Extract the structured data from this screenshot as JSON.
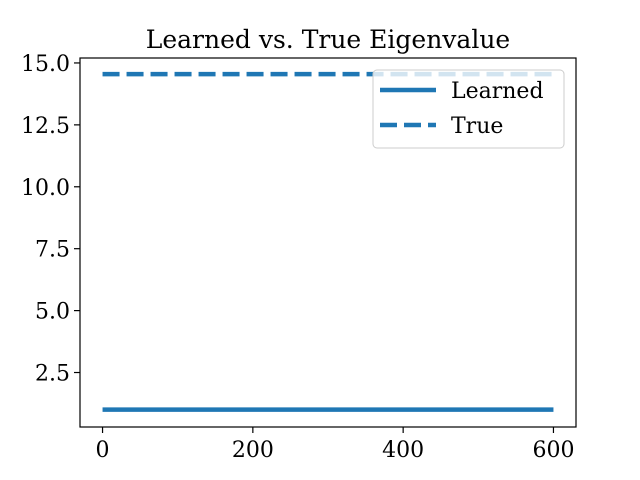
{
  "chart_data": {
    "type": "line",
    "title": "Learned vs. True Eigenvalue",
    "xlabel": "",
    "ylabel": "",
    "xlim": [
      -30,
      630
    ],
    "ylim": [
      0.3,
      15.2
    ],
    "x_ticks": [
      0,
      200,
      400,
      600
    ],
    "y_ticks": [
      2.5,
      5.0,
      7.5,
      10.0,
      12.5,
      15.0
    ],
    "x_tick_labels": [
      "0",
      "200",
      "400",
      "600"
    ],
    "y_tick_labels": [
      "2.5",
      "5.0",
      "7.5",
      "10.0",
      "12.5",
      "15.0"
    ],
    "grid": false,
    "legend_position": "upper right",
    "series": [
      {
        "name": "Learned",
        "x": [
          0,
          600
        ],
        "y": [
          1.0,
          1.0
        ],
        "style": "solid",
        "color": "#1f77b4"
      },
      {
        "name": "True",
        "x": [
          0,
          600
        ],
        "y": [
          14.55,
          14.55
        ],
        "style": "dashed",
        "color": "#1f77b4"
      }
    ]
  }
}
